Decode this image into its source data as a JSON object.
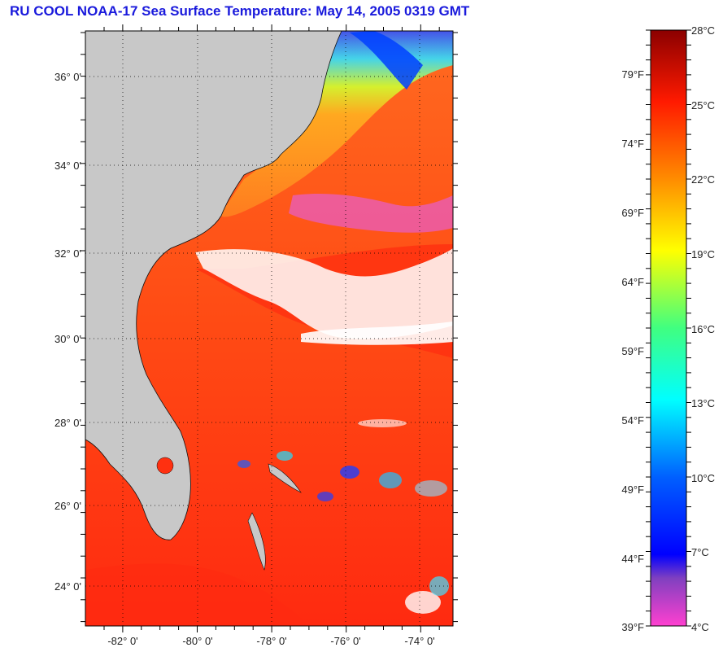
{
  "title": "RU COOL  NOAA-17  Sea Surface Temperature:  May 14, 2005 0319 GMT",
  "map": {
    "lat_labels": [
      "36° 0'",
      "34° 0'",
      "32° 0'",
      "30° 0'",
      "28° 0'",
      "26° 0'",
      "24° 0'"
    ],
    "lon_labels": [
      "-82° 0'",
      "-80° 0'",
      "-78° 0'",
      "-76° 0'",
      "-74° 0'"
    ],
    "land_color": "#c8c8c8",
    "warm_color": "#ff3a10",
    "gulfstream_color": "#ff5a14"
  },
  "colorbar": {
    "fahrenheit_labels": [
      "79°F",
      "74°F",
      "69°F",
      "64°F",
      "59°F",
      "54°F",
      "49°F",
      "44°F",
      "39°F"
    ],
    "celsius_labels": [
      "28°C",
      "25°C",
      "22°C",
      "19°C",
      "16°C",
      "13°C",
      "10°C",
      "7°C",
      "4°C"
    ],
    "stops": [
      "#8b0000",
      "#ff1a00",
      "#ff8c00",
      "#ffff00",
      "#40ff80",
      "#00ffff",
      "#0060ff",
      "#0000ff",
      "#8040c0",
      "#ff40d0"
    ]
  }
}
